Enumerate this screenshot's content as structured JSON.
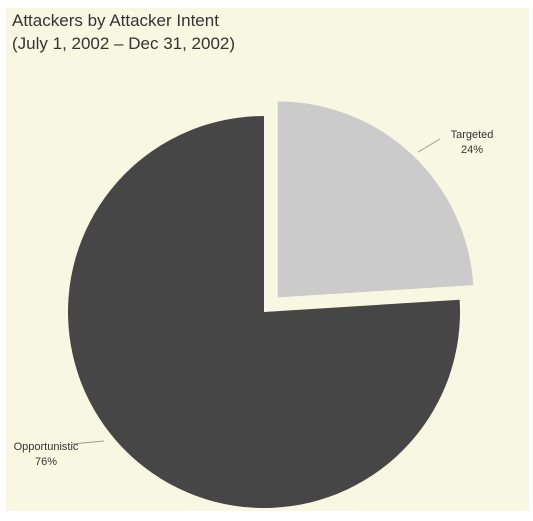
{
  "chart_data": {
    "type": "pie",
    "title": "Attackers by Attacker Intent",
    "subtitle": "(July 1, 2002 – Dec 31, 2002)",
    "slices": [
      {
        "label": "Targeted",
        "value": 24,
        "value_label": "24%",
        "color": "#cbcbcb",
        "exploded": true
      },
      {
        "label": "Opportunistic",
        "value": 76,
        "value_label": "76%",
        "color": "#464646",
        "exploded": false
      }
    ],
    "start_angle": "12 o'clock",
    "direction": "clockwise",
    "background": "#f8f8e2"
  }
}
